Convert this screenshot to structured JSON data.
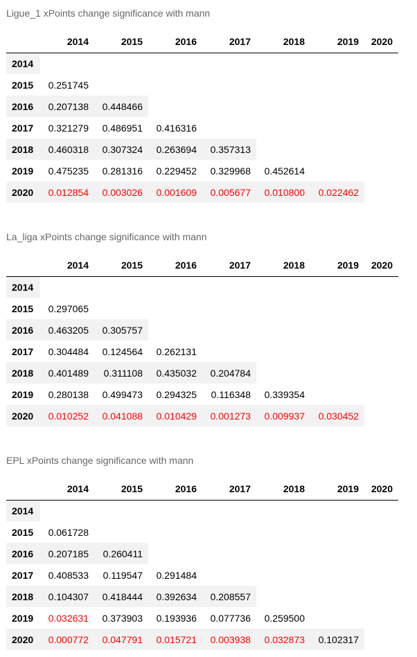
{
  "years": [
    "2014",
    "2015",
    "2016",
    "2017",
    "2018",
    "2019",
    "2020"
  ],
  "colors": {
    "significant": "#ff0000",
    "caption": "#666666",
    "row_shade": "#f2f2f2"
  },
  "tables": [
    {
      "caption": "Ligue_1 xPoints change significance with mann",
      "rows": [
        {
          "year": "2014",
          "values": []
        },
        {
          "year": "2015",
          "values": [
            "0.251745"
          ]
        },
        {
          "year": "2016",
          "values": [
            "0.207138",
            "0.448466"
          ]
        },
        {
          "year": "2017",
          "values": [
            "0.321279",
            "0.486951",
            "0.416316"
          ]
        },
        {
          "year": "2018",
          "values": [
            "0.460318",
            "0.307324",
            "0.263694",
            "0.357313"
          ]
        },
        {
          "year": "2019",
          "values": [
            "0.475235",
            "0.281316",
            "0.229452",
            "0.329968",
            "0.452614"
          ]
        },
        {
          "year": "2020",
          "values": [
            "0.012854",
            "0.003026",
            "0.001609",
            "0.005677",
            "0.010800",
            "0.022462"
          ]
        }
      ]
    },
    {
      "caption": "La_liga xPoints change significance with mann",
      "rows": [
        {
          "year": "2014",
          "values": []
        },
        {
          "year": "2015",
          "values": [
            "0.297065"
          ]
        },
        {
          "year": "2016",
          "values": [
            "0.463205",
            "0.305757"
          ]
        },
        {
          "year": "2017",
          "values": [
            "0.304484",
            "0.124564",
            "0.262131"
          ]
        },
        {
          "year": "2018",
          "values": [
            "0.401489",
            "0.311108",
            "0.435032",
            "0.204784"
          ]
        },
        {
          "year": "2019",
          "values": [
            "0.280138",
            "0.499473",
            "0.294325",
            "0.116348",
            "0.339354"
          ]
        },
        {
          "year": "2020",
          "values": [
            "0.010252",
            "0.041088",
            "0.010429",
            "0.001273",
            "0.009937",
            "0.030452"
          ]
        }
      ]
    },
    {
      "caption": "EPL xPoints change significance with mann",
      "rows": [
        {
          "year": "2014",
          "values": []
        },
        {
          "year": "2015",
          "values": [
            "0.061728"
          ]
        },
        {
          "year": "2016",
          "values": [
            "0.207185",
            "0.260411"
          ]
        },
        {
          "year": "2017",
          "values": [
            "0.408533",
            "0.119547",
            "0.291484"
          ]
        },
        {
          "year": "2018",
          "values": [
            "0.104307",
            "0.418444",
            "0.392634",
            "0.208557"
          ]
        },
        {
          "year": "2019",
          "values": [
            "0.032631",
            "0.373903",
            "0.193936",
            "0.077736",
            "0.259500"
          ]
        },
        {
          "year": "2020",
          "values": [
            "0.000772",
            "0.047791",
            "0.015721",
            "0.003938",
            "0.032873",
            "0.102317"
          ]
        }
      ]
    }
  ]
}
